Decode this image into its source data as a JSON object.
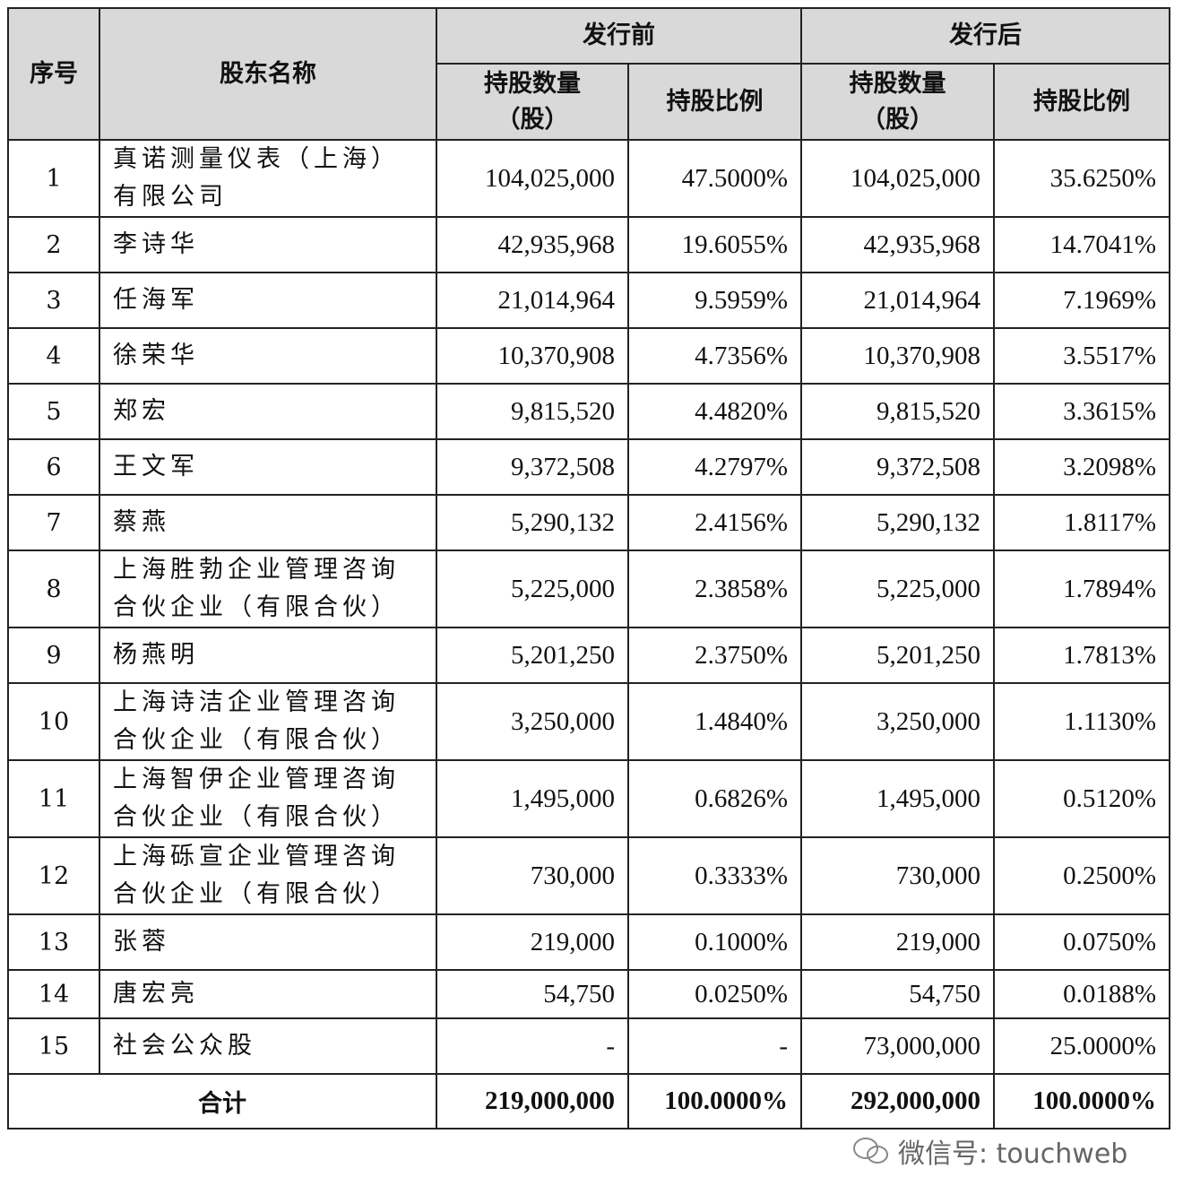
{
  "header": {
    "index": "序号",
    "name": "股东名称",
    "before": "发行前",
    "after": "发行后",
    "shares": "持股数量\n（股）",
    "ratio": "持股比例"
  },
  "rows": [
    {
      "idx": "1",
      "name": "真诺测量仪表（上海）有限公司",
      "before_shares": "104,025,000",
      "before_ratio": "47.5000%",
      "after_shares": "104,025,000",
      "after_ratio": "35.6250%"
    },
    {
      "idx": "2",
      "name": "李诗华",
      "before_shares": "42,935,968",
      "before_ratio": "19.6055%",
      "after_shares": "42,935,968",
      "after_ratio": "14.7041%"
    },
    {
      "idx": "3",
      "name": "任海军",
      "before_shares": "21,014,964",
      "before_ratio": "9.5959%",
      "after_shares": "21,014,964",
      "after_ratio": "7.1969%"
    },
    {
      "idx": "4",
      "name": "徐荣华",
      "before_shares": "10,370,908",
      "before_ratio": "4.7356%",
      "after_shares": "10,370,908",
      "after_ratio": "3.5517%"
    },
    {
      "idx": "5",
      "name": "郑宏",
      "before_shares": "9,815,520",
      "before_ratio": "4.4820%",
      "after_shares": "9,815,520",
      "after_ratio": "3.3615%"
    },
    {
      "idx": "6",
      "name": "王文军",
      "before_shares": "9,372,508",
      "before_ratio": "4.2797%",
      "after_shares": "9,372,508",
      "after_ratio": "3.2098%"
    },
    {
      "idx": "7",
      "name": "蔡燕",
      "before_shares": "5,290,132",
      "before_ratio": "2.4156%",
      "after_shares": "5,290,132",
      "after_ratio": "1.8117%"
    },
    {
      "idx": "8",
      "name": "上海胜勃企业管理咨询合伙企业（有限合伙）",
      "before_shares": "5,225,000",
      "before_ratio": "2.3858%",
      "after_shares": "5,225,000",
      "after_ratio": "1.7894%"
    },
    {
      "idx": "9",
      "name": "杨燕明",
      "before_shares": "5,201,250",
      "before_ratio": "2.3750%",
      "after_shares": "5,201,250",
      "after_ratio": "1.7813%"
    },
    {
      "idx": "10",
      "name": "上海诗洁企业管理咨询合伙企业（有限合伙）",
      "before_shares": "3,250,000",
      "before_ratio": "1.4840%",
      "after_shares": "3,250,000",
      "after_ratio": "1.1130%"
    },
    {
      "idx": "11",
      "name": "上海智伊企业管理咨询合伙企业（有限合伙）",
      "before_shares": "1,495,000",
      "before_ratio": "0.6826%",
      "after_shares": "1,495,000",
      "after_ratio": "0.5120%"
    },
    {
      "idx": "12",
      "name": "上海砾宣企业管理咨询合伙企业（有限合伙）",
      "before_shares": "730,000",
      "before_ratio": "0.3333%",
      "after_shares": "730,000",
      "after_ratio": "0.2500%"
    },
    {
      "idx": "13",
      "name": "张蓉",
      "before_shares": "219,000",
      "before_ratio": "0.1000%",
      "after_shares": "219,000",
      "after_ratio": "0.0750%"
    },
    {
      "idx": "14",
      "name": "唐宏亮",
      "before_shares": "54,750",
      "before_ratio": "0.0250%",
      "after_shares": "54,750",
      "after_ratio": "0.0188%"
    },
    {
      "idx": "15",
      "name": "社会公众股",
      "before_shares": "-",
      "before_ratio": "-",
      "after_shares": "73,000,000",
      "after_ratio": "25.0000%"
    }
  ],
  "total": {
    "label": "合计",
    "before_shares": "219,000,000",
    "before_ratio": "100.0000%",
    "after_shares": "292,000,000",
    "after_ratio": "100.0000%"
  },
  "watermark": {
    "icon": "wechat-icon",
    "text": "微信号: touchweb"
  }
}
